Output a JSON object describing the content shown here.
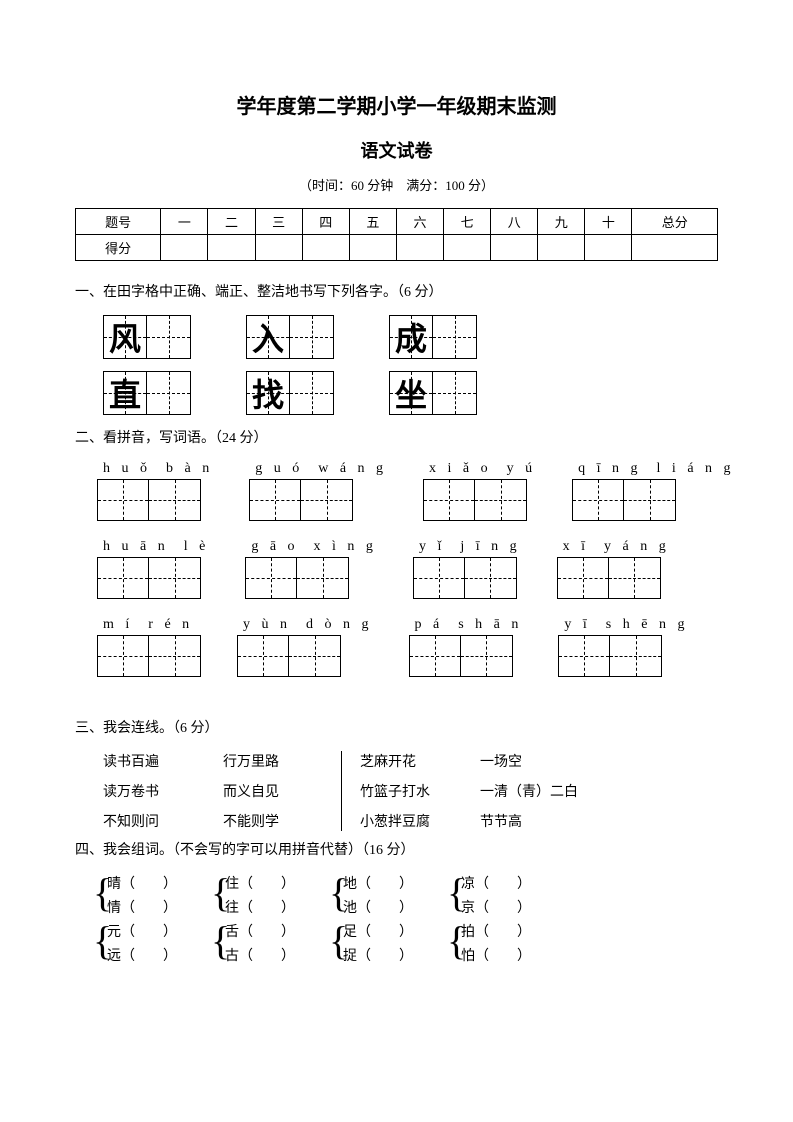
{
  "titles": {
    "main": "学年度第二学期小学一年级期末监测",
    "sub": "语文试卷",
    "info": "（时间：60 分钟　满分：100 分）"
  },
  "score_table": {
    "header": [
      "题号",
      "一",
      "二",
      "三",
      "四",
      "五",
      "六",
      "七",
      "八",
      "九",
      "十",
      "总分"
    ],
    "row2_label": "得分"
  },
  "q1": {
    "heading": "一、在田字格中正确、端正、整洁地书写下列各字。（6 分）",
    "chars": [
      [
        "风",
        "入",
        "成"
      ],
      [
        "直",
        "找",
        "坐"
      ]
    ]
  },
  "q2": {
    "heading": "二、看拼音，写词语。（24 分）",
    "rows": [
      [
        "h u ǒ  b à n",
        "g u ó  w á n g",
        "x i ǎ o  y ú",
        "q ī n g  l i á n g"
      ],
      [
        "h u ā n  l è",
        "g ā o  x ì n g",
        "y ǐ  j ī n g",
        "x ī  y á n g"
      ],
      [
        "m í  r é n",
        "y ù n  d ò n g",
        "p á  s h ā n",
        "y ī  s h ē n g"
      ]
    ]
  },
  "q3": {
    "heading": "三、我会连线。（6 分）",
    "left_a": [
      "读书百遍",
      "读万卷书",
      "不知则问"
    ],
    "left_b": [
      "行万里路",
      "而义自见",
      "不能则学"
    ],
    "right_a": [
      "芝麻开花",
      "竹篮子打水",
      "小葱拌豆腐"
    ],
    "right_b": [
      "一场空",
      "一清（青）二白",
      "节节高"
    ]
  },
  "q4": {
    "heading": "四、我会组词。（不会写的字可以用拼音代替）（16 分）",
    "rows": [
      [
        [
          "晴（　　）",
          "情（　　）"
        ],
        [
          "住（　　）",
          "往（　　）"
        ],
        [
          "地（　　）",
          "池（　　）"
        ],
        [
          "凉（　　）",
          "京（　　）"
        ]
      ],
      [
        [
          "元（　　）",
          "远（　　）"
        ],
        [
          "舌（　　）",
          "古（　　）"
        ],
        [
          "足（　　）",
          "捉（　　）"
        ],
        [
          "拍（　　）",
          "怕（　　）"
        ]
      ]
    ]
  }
}
